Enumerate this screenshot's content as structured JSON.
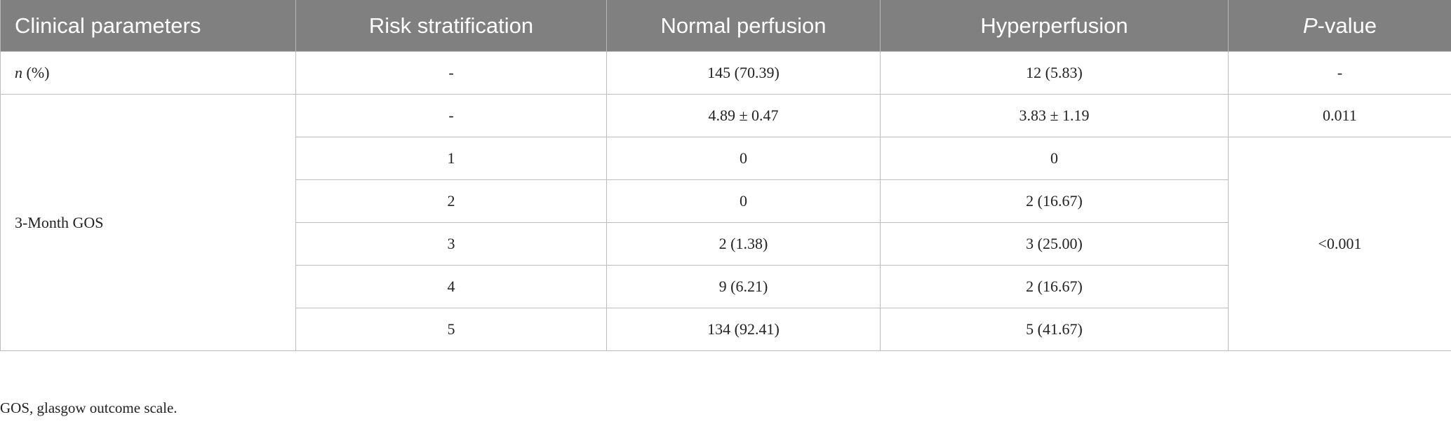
{
  "table": {
    "header": [
      "Clinical parameters",
      "Risk stratification",
      "Normal perfusion",
      "Hyperperfusion",
      [
        "P",
        "-value"
      ]
    ],
    "rows": [
      [
        [
          "n",
          " (%)"
        ],
        "-",
        "145 (70.39)",
        "12 (5.83)",
        "-"
      ],
      [
        "3-Month GOS",
        "-",
        "4.89 ± 0.47",
        "3.83 ± 1.19",
        "0.011"
      ],
      [
        "1",
        "0",
        "0",
        "<0.001"
      ],
      [
        "2",
        "0",
        "2 (16.67)"
      ],
      [
        "3",
        "2 (1.38)",
        "3 (25.00)"
      ],
      [
        "4",
        "9 (6.21)",
        "2 (16.67)"
      ],
      [
        "5",
        "134 (92.41)",
        "5 (41.67)"
      ]
    ]
  },
  "footnote": "GOS, glasgow outcome scale."
}
